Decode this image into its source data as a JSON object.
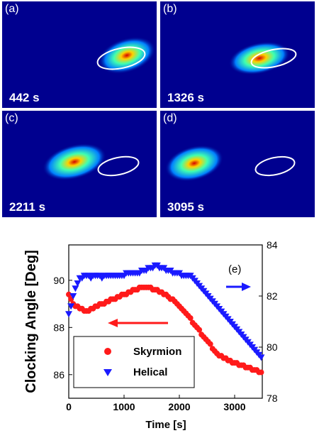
{
  "panels": [
    {
      "label": "(a)",
      "time": "442 s"
    },
    {
      "label": "(b)",
      "time": "1326 s"
    },
    {
      "label": "(c)",
      "time": "2211 s"
    },
    {
      "label": "(d)",
      "time": "3095 s"
    }
  ],
  "colors": {
    "panel_bg": "#00008f",
    "skyrmion": "#ff1a1a",
    "helical": "#1a1aff",
    "ellipse": "#ffffff"
  },
  "chart_data": {
    "type": "scatter",
    "panel_label": "(e)",
    "xlabel": "Time [s]",
    "ylabel": "Clocking Angle [Deg]",
    "xlim": [
      0,
      3500
    ],
    "ylim_left": [
      85,
      91.5
    ],
    "ylim_right": [
      78,
      84
    ],
    "x_ticks": [
      0,
      1000,
      2000,
      3000
    ],
    "y_left_ticks": [
      86,
      88,
      90
    ],
    "y_right_ticks": [
      78,
      80,
      82,
      84
    ],
    "legend_position": "bottom-left",
    "series": [
      {
        "name": "Skyrmion",
        "axis": "left",
        "marker": "circle",
        "color": "#ff1a1a",
        "points": [
          [
            0,
            89.4
          ],
          [
            40,
            89.2
          ],
          [
            80,
            89.0
          ],
          [
            120,
            88.9
          ],
          [
            160,
            88.9
          ],
          [
            200,
            88.8
          ],
          [
            240,
            88.8
          ],
          [
            280,
            88.7
          ],
          [
            320,
            88.7
          ],
          [
            360,
            88.7
          ],
          [
            400,
            88.8
          ],
          [
            440,
            88.8
          ],
          [
            480,
            88.9
          ],
          [
            520,
            88.9
          ],
          [
            560,
            89.0
          ],
          [
            600,
            89.0
          ],
          [
            640,
            89.0
          ],
          [
            680,
            89.1
          ],
          [
            720,
            89.1
          ],
          [
            760,
            89.2
          ],
          [
            800,
            89.2
          ],
          [
            840,
            89.2
          ],
          [
            880,
            89.3
          ],
          [
            920,
            89.3
          ],
          [
            960,
            89.4
          ],
          [
            1000,
            89.4
          ],
          [
            1040,
            89.4
          ],
          [
            1080,
            89.5
          ],
          [
            1120,
            89.5
          ],
          [
            1160,
            89.6
          ],
          [
            1200,
            89.6
          ],
          [
            1240,
            89.6
          ],
          [
            1280,
            89.7
          ],
          [
            1320,
            89.7
          ],
          [
            1360,
            89.7
          ],
          [
            1400,
            89.7
          ],
          [
            1440,
            89.7
          ],
          [
            1480,
            89.7
          ],
          [
            1520,
            89.6
          ],
          [
            1560,
            89.6
          ],
          [
            1600,
            89.6
          ],
          [
            1640,
            89.5
          ],
          [
            1680,
            89.5
          ],
          [
            1720,
            89.4
          ],
          [
            1760,
            89.4
          ],
          [
            1800,
            89.3
          ],
          [
            1840,
            89.2
          ],
          [
            1880,
            89.2
          ],
          [
            1920,
            89.1
          ],
          [
            1960,
            89.0
          ],
          [
            2000,
            88.9
          ],
          [
            2040,
            88.8
          ],
          [
            2080,
            88.7
          ],
          [
            2120,
            88.6
          ],
          [
            2160,
            88.5
          ],
          [
            2200,
            88.4
          ],
          [
            2240,
            88.2
          ],
          [
            2280,
            88.1
          ],
          [
            2320,
            88.0
          ],
          [
            2360,
            87.9
          ],
          [
            2400,
            87.7
          ],
          [
            2440,
            87.6
          ],
          [
            2480,
            87.5
          ],
          [
            2520,
            87.4
          ],
          [
            2560,
            87.3
          ],
          [
            2600,
            87.1
          ],
          [
            2640,
            87.0
          ],
          [
            2680,
            86.9
          ],
          [
            2720,
            86.8
          ],
          [
            2760,
            86.8
          ],
          [
            2800,
            86.7
          ],
          [
            2840,
            86.7
          ],
          [
            2880,
            86.6
          ],
          [
            2920,
            86.6
          ],
          [
            2960,
            86.5
          ],
          [
            3000,
            86.5
          ],
          [
            3040,
            86.5
          ],
          [
            3080,
            86.4
          ],
          [
            3120,
            86.4
          ],
          [
            3160,
            86.4
          ],
          [
            3200,
            86.3
          ],
          [
            3240,
            86.3
          ],
          [
            3280,
            86.3
          ],
          [
            3320,
            86.2
          ],
          [
            3360,
            86.2
          ],
          [
            3400,
            86.2
          ],
          [
            3440,
            86.1
          ],
          [
            3480,
            86.1
          ]
        ]
      },
      {
        "name": "Helical",
        "axis": "right",
        "marker": "triangle-down",
        "color": "#1a1aff",
        "points": [
          [
            0,
            81.3
          ],
          [
            40,
            81.6
          ],
          [
            80,
            82.0
          ],
          [
            120,
            82.3
          ],
          [
            160,
            82.5
          ],
          [
            200,
            82.7
          ],
          [
            240,
            82.7
          ],
          [
            280,
            82.8
          ],
          [
            320,
            82.8
          ],
          [
            360,
            82.8
          ],
          [
            400,
            82.7
          ],
          [
            440,
            82.8
          ],
          [
            480,
            82.8
          ],
          [
            520,
            82.8
          ],
          [
            560,
            82.8
          ],
          [
            600,
            82.7
          ],
          [
            640,
            82.8
          ],
          [
            680,
            82.8
          ],
          [
            720,
            82.8
          ],
          [
            760,
            82.8
          ],
          [
            800,
            82.8
          ],
          [
            840,
            82.8
          ],
          [
            880,
            82.8
          ],
          [
            920,
            82.8
          ],
          [
            960,
            82.8
          ],
          [
            1000,
            82.8
          ],
          [
            1040,
            82.9
          ],
          [
            1080,
            82.9
          ],
          [
            1120,
            82.9
          ],
          [
            1160,
            82.9
          ],
          [
            1200,
            82.9
          ],
          [
            1240,
            82.9
          ],
          [
            1280,
            82.9
          ],
          [
            1320,
            83.0
          ],
          [
            1360,
            83.0
          ],
          [
            1400,
            83.0
          ],
          [
            1440,
            83.1
          ],
          [
            1480,
            83.1
          ],
          [
            1520,
            83.1
          ],
          [
            1560,
            83.2
          ],
          [
            1600,
            83.2
          ],
          [
            1640,
            83.1
          ],
          [
            1680,
            83.1
          ],
          [
            1720,
            83.1
          ],
          [
            1760,
            83.0
          ],
          [
            1800,
            83.0
          ],
          [
            1840,
            83.0
          ],
          [
            1880,
            82.9
          ],
          [
            1920,
            82.9
          ],
          [
            1960,
            82.9
          ],
          [
            2000,
            82.9
          ],
          [
            2040,
            82.8
          ],
          [
            2080,
            82.8
          ],
          [
            2120,
            82.8
          ],
          [
            2160,
            82.8
          ],
          [
            2200,
            82.8
          ],
          [
            2240,
            82.7
          ],
          [
            2280,
            82.6
          ],
          [
            2320,
            82.5
          ],
          [
            2360,
            82.4
          ],
          [
            2400,
            82.3
          ],
          [
            2440,
            82.2
          ],
          [
            2480,
            82.1
          ],
          [
            2520,
            82.0
          ],
          [
            2560,
            81.9
          ],
          [
            2600,
            81.8
          ],
          [
            2640,
            81.7
          ],
          [
            2680,
            81.6
          ],
          [
            2720,
            81.5
          ],
          [
            2760,
            81.4
          ],
          [
            2800,
            81.3
          ],
          [
            2840,
            81.2
          ],
          [
            2880,
            81.1
          ],
          [
            2920,
            81.0
          ],
          [
            2960,
            80.9
          ],
          [
            3000,
            80.8
          ],
          [
            3040,
            80.7
          ],
          [
            3080,
            80.6
          ],
          [
            3120,
            80.5
          ],
          [
            3160,
            80.4
          ],
          [
            3200,
            80.3
          ],
          [
            3240,
            80.2
          ],
          [
            3280,
            80.1
          ],
          [
            3320,
            80.0
          ],
          [
            3360,
            79.9
          ],
          [
            3400,
            79.8
          ],
          [
            3440,
            79.7
          ],
          [
            3480,
            79.6
          ]
        ]
      }
    ]
  }
}
